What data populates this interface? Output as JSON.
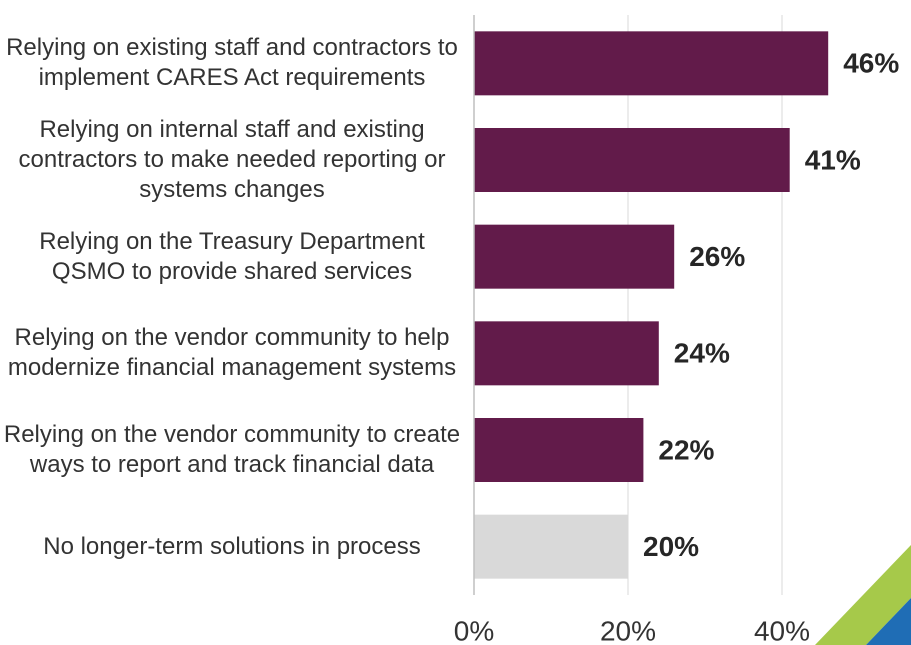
{
  "chart_data": {
    "type": "barh",
    "categories": [
      "Relying on existing staff and contractors to implement CARES Act requirements",
      "Relying on internal staff and existing contractors to make needed reporting or systems changes",
      "Relying on the Treasury Department QSMO to provide shared services",
      "Relying on the vendor community to help modernize financial management systems",
      "Relying on the vendor community to create ways to report and track financial data",
      "No longer-term solutions in process"
    ],
    "values": [
      46,
      41,
      26,
      24,
      22,
      20
    ],
    "value_labels": [
      "46%",
      "41%",
      "26%",
      "24%",
      "22%",
      "20%"
    ],
    "colors": [
      "#621b4a",
      "#621b4a",
      "#621b4a",
      "#621b4a",
      "#621b4a",
      "#d9d9d9"
    ],
    "xlim": [
      0,
      50
    ],
    "xticks": [
      {
        "value": 0,
        "label": "0%"
      },
      {
        "value": 20,
        "label": "20%"
      },
      {
        "value": 40,
        "label": "40%"
      }
    ],
    "grid": true
  }
}
